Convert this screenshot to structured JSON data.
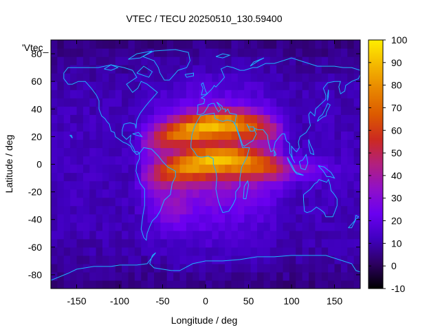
{
  "chart_data": {
    "type": "heatmap",
    "title": "VTEC / TECU 20250510_130.59400",
    "xlabel": "Longitude / deg",
    "ylabel": "Latitude / deg",
    "key_label": "'Vtec_",
    "xlim": [
      -180,
      180
    ],
    "ylim": [
      -90,
      90
    ],
    "x_ticks": [
      -150,
      -100,
      -50,
      0,
      50,
      100,
      150
    ],
    "y_ticks": [
      -80,
      -60,
      -40,
      -20,
      0,
      20,
      40,
      60,
      80
    ],
    "colorbar": {
      "min": -10,
      "max": 100,
      "ticks": [
        -10,
        0,
        10,
        20,
        30,
        40,
        50,
        60,
        70,
        80,
        90,
        100
      ],
      "palette": "gnuplot-hot (black-purple-red-orange-yellow)"
    },
    "grid": false,
    "features": [
      {
        "label": "equatorial anomaly peak",
        "lon": -15,
        "lat": 22,
        "vtec": 90
      },
      {
        "label": "equatorial anomaly peak",
        "lon": -15,
        "lat": -3,
        "vtec": 95
      },
      {
        "label": "background minimum",
        "lon": 0,
        "lat": -85,
        "vtec": 3
      }
    ]
  },
  "colors": {
    "coastline": "#1eb4ff",
    "axis": "#000000"
  }
}
